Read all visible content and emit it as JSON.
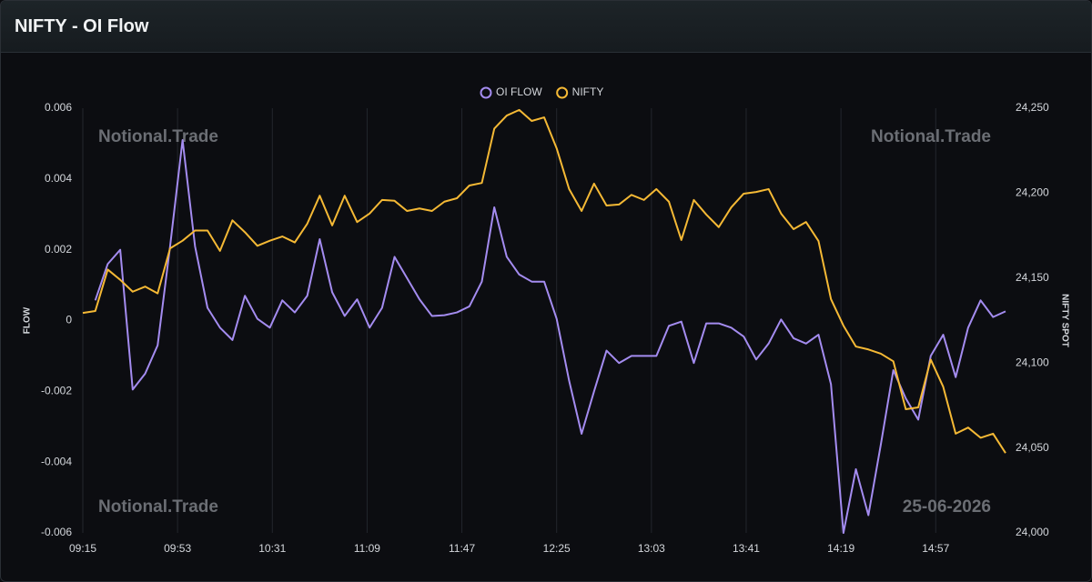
{
  "header": {
    "title": "NIFTY - OI Flow"
  },
  "chart_data": {
    "type": "line",
    "x": [
      "09:15",
      "09:20",
      "09:25",
      "09:30",
      "09:35",
      "09:40",
      "09:45",
      "09:50",
      "09:55",
      "10:00",
      "10:05",
      "10:10",
      "10:15",
      "10:20",
      "10:25",
      "10:30",
      "10:35",
      "10:40",
      "10:45",
      "10:50",
      "10:55",
      "11:00",
      "11:05",
      "11:10",
      "11:15",
      "11:20",
      "11:25",
      "11:30",
      "11:35",
      "11:40",
      "11:45",
      "11:50",
      "11:55",
      "12:00",
      "12:05",
      "12:10",
      "12:15",
      "12:20",
      "12:25",
      "12:30",
      "12:35",
      "12:40",
      "12:45",
      "12:50",
      "12:55",
      "13:00",
      "13:05",
      "13:10",
      "13:15",
      "13:20",
      "13:25",
      "13:30",
      "13:35",
      "13:40",
      "13:45",
      "13:50",
      "13:55",
      "14:00",
      "14:05",
      "14:10",
      "14:15",
      "14:20",
      "14:25",
      "14:30",
      "14:35",
      "14:40",
      "14:45",
      "14:50",
      "14:55",
      "15:00",
      "15:05",
      "15:10",
      "15:15",
      "15:20",
      "15:25"
    ],
    "xlim": [
      "09:15",
      "15:25"
    ],
    "xticks": [
      "09:15",
      "09:53",
      "10:31",
      "11:09",
      "11:47",
      "12:25",
      "13:03",
      "13:41",
      "14:19",
      "14:57"
    ],
    "ylabel": "FLOW",
    "y2label": "NIFTY SPOT",
    "ylim": [
      -0.006,
      0.006
    ],
    "yticks": [
      0.006,
      0.004,
      0.002,
      0,
      -0.002,
      -0.004,
      -0.006
    ],
    "y2lim": [
      24000,
      24250
    ],
    "y2ticks": [
      {
        "value": 24250,
        "label": "24,250"
      },
      {
        "value": 24200,
        "label": "24,200"
      },
      {
        "value": 24150,
        "label": "24,150"
      },
      {
        "value": 24100,
        "label": "24,100"
      },
      {
        "value": 24050,
        "label": "24,050"
      },
      {
        "value": 24000,
        "label": "24,000"
      }
    ],
    "grid": true,
    "legend": "top",
    "series": [
      {
        "name": "OI FLOW",
        "color": "#a48cf0",
        "axis": "y",
        "values": [
          null,
          0.00057,
          0.0016,
          0.002,
          -0.00195,
          -0.0015,
          -0.0007,
          0.0021,
          0.0051,
          0.0021,
          0.00036,
          -0.0002,
          -0.00055,
          0.0007,
          5e-05,
          -0.0002,
          0.00057,
          0.00023,
          0.0007,
          0.0023,
          0.0008,
          0.00013,
          0.0006,
          -0.0002,
          0.00036,
          0.0018,
          0.0012,
          0.0006,
          0.00013,
          0.00015,
          0.00023,
          0.0004,
          0.0011,
          0.0032,
          0.0018,
          0.0013,
          0.0011,
          0.0011,
          5e-05,
          -0.0017,
          -0.0032,
          -0.002,
          -0.00085,
          -0.0012,
          -0.001,
          -0.001,
          -0.001,
          -0.00015,
          -3e-05,
          -0.0012,
          -8e-05,
          -8e-05,
          -0.0002,
          -0.00045,
          -0.0011,
          -0.00065,
          3e-05,
          -0.0005,
          -0.00065,
          -0.0004,
          -0.0018,
          -0.006,
          -0.0042,
          -0.0055,
          -0.0035,
          -0.0014,
          -0.0022,
          -0.0028,
          -0.001,
          -0.0004,
          -0.0016,
          -0.0002,
          0.00057,
          0.0001,
          0.00026
        ]
      },
      {
        "name": "NIFTY",
        "color": "#f5b935",
        "axis": "y2",
        "values": [
          24129.5,
          24130.6,
          24155,
          24149,
          24142,
          24145,
          24141,
          24167.5,
          24172,
          24178,
          24178,
          24166,
          24184,
          24177,
          24169,
          24172,
          24174.5,
          24171,
          24182,
          24198.5,
          24181,
          24198.5,
          24183,
          24188,
          24196,
          24195.5,
          24189.5,
          24191,
          24189.5,
          24195,
          24197,
          24204.5,
          24206,
          24238,
          24245.7,
          24249,
          24242.5,
          24244.6,
          24226.4,
          24202.4,
          24189.5,
          24205.6,
          24192.7,
          24193.3,
          24199,
          24196,
          24202.4,
          24195,
          24172.4,
          24196,
          24187.4,
          24180,
          24191.6,
          24199.7,
          24200.7,
          24202.4,
          24188,
          24178.8,
          24183,
          24171.8,
          24137.6,
          24122,
          24109.7,
          24108,
          24105.5,
          24101,
          24072.8,
          24073.9,
          24102,
          24086,
          24058.4,
          24062,
          24056,
          24058.4,
          24047
        ]
      }
    ],
    "watermarks": [
      "Notional.Trade",
      "Notional.Trade",
      "Notional.Trade",
      "25-06-2026"
    ]
  }
}
